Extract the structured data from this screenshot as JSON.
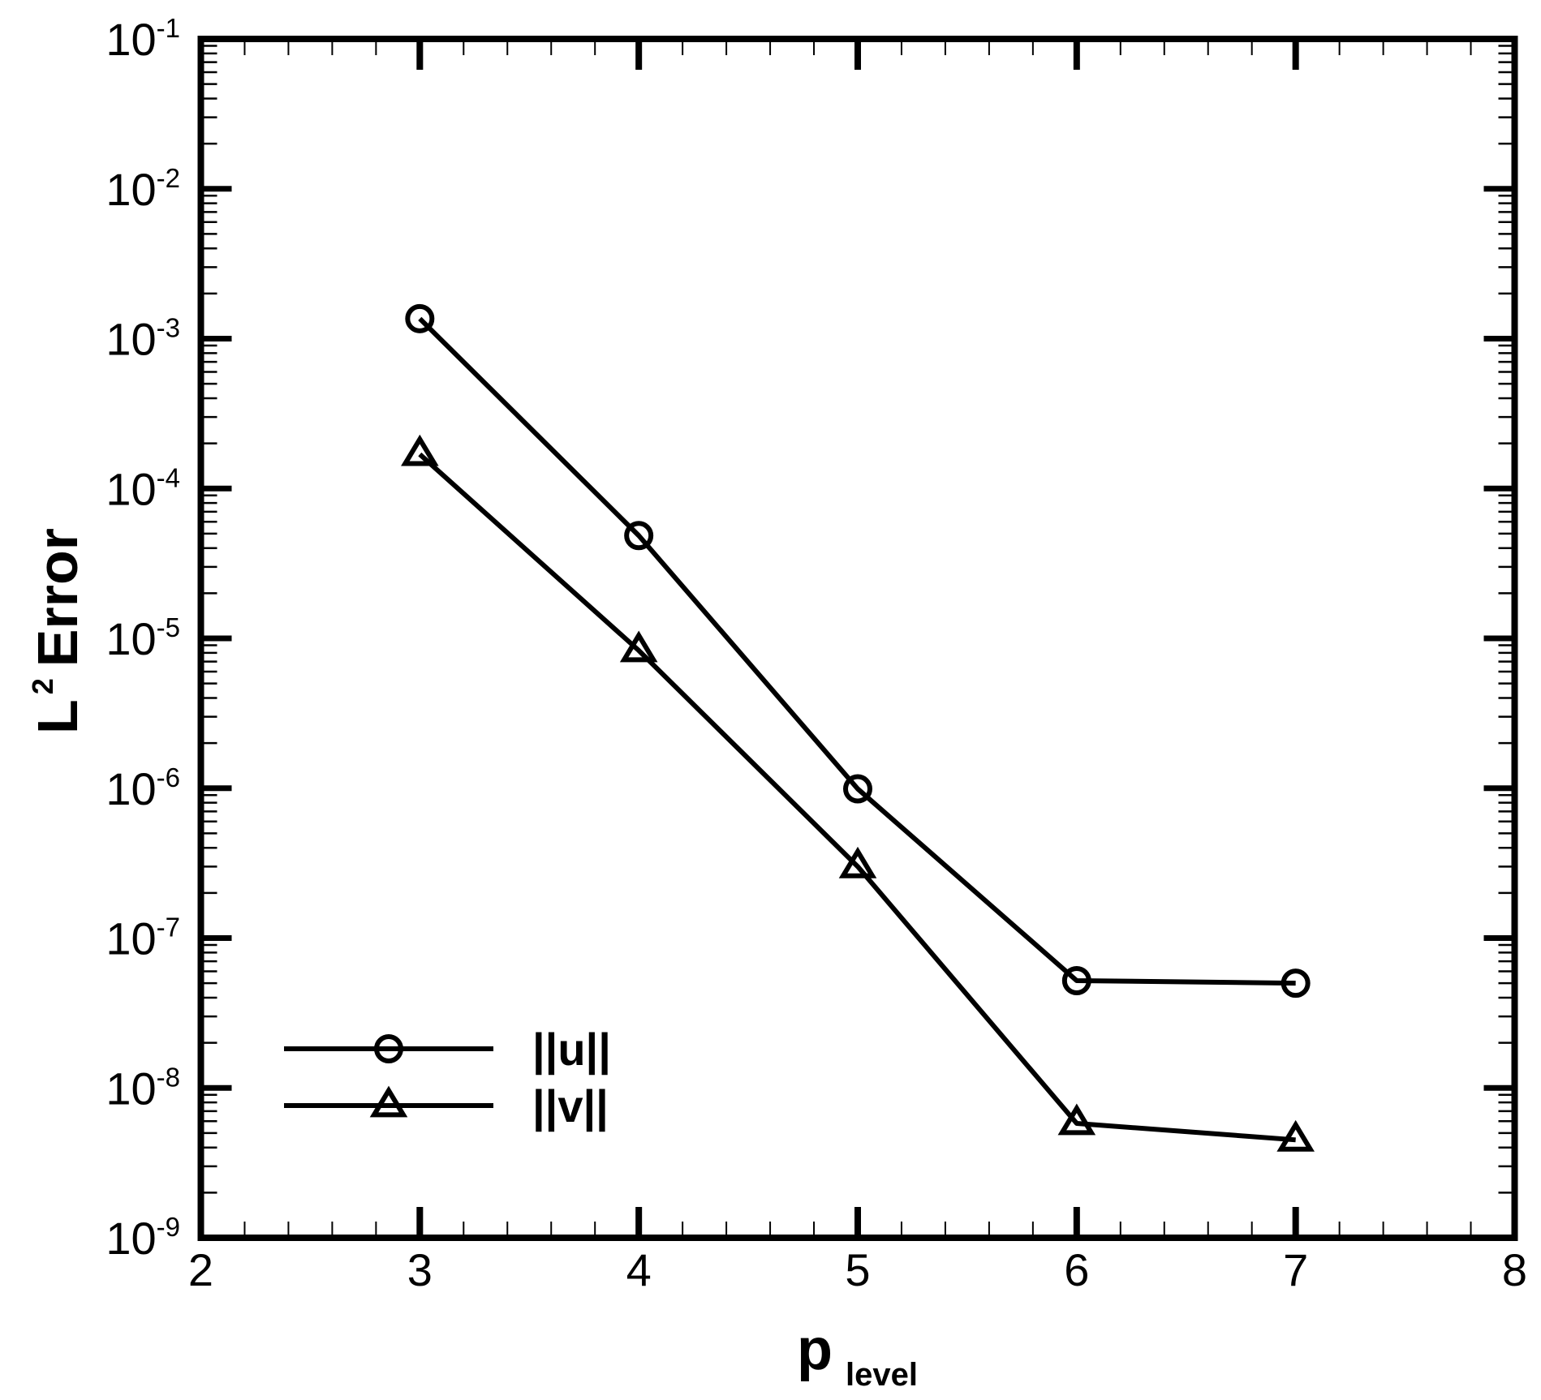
{
  "chart_data": {
    "type": "line",
    "title": "",
    "xlabel": "p",
    "xlabel_subscript": "level",
    "ylabel": "L",
    "ylabel_superscript": "2",
    "ylabel_rest": "Error",
    "xscale": "linear",
    "yscale": "log",
    "xlim": [
      2,
      8
    ],
    "ylim": [
      1e-09,
      0.1
    ],
    "x_ticks": [
      "2",
      "3",
      "4",
      "5",
      "6",
      "7",
      "8"
    ],
    "y_ticks": [
      {
        "base": "10",
        "exp": "-1",
        "value": 0.1
      },
      {
        "base": "10",
        "exp": "-2",
        "value": 0.01
      },
      {
        "base": "10",
        "exp": "-3",
        "value": 0.001
      },
      {
        "base": "10",
        "exp": "-4",
        "value": 0.0001
      },
      {
        "base": "10",
        "exp": "-5",
        "value": 1e-05
      },
      {
        "base": "10",
        "exp": "-6",
        "value": 1e-06
      },
      {
        "base": "10",
        "exp": "-7",
        "value": 1e-07
      },
      {
        "base": "10",
        "exp": "-8",
        "value": 1e-08
      },
      {
        "base": "10",
        "exp": "-9",
        "value": 1e-09
      }
    ],
    "grid": false,
    "legend_position": "lower left",
    "x": [
      3,
      4,
      5,
      6,
      7
    ],
    "series": [
      {
        "name": "||u||",
        "marker": "circle",
        "color": "#000000",
        "values": [
          0.00136,
          4.85e-05,
          9.9e-07,
          5.2e-08,
          5e-08
        ]
      },
      {
        "name": "||v||",
        "marker": "triangle",
        "color": "#000000",
        "values": [
          0.000169,
          8.3e-06,
          3e-07,
          5.8e-09,
          4.5e-09
        ]
      }
    ]
  }
}
